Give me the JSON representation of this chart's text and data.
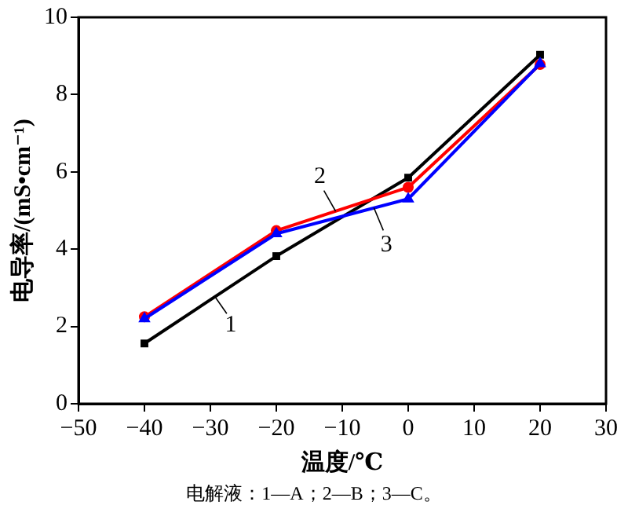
{
  "chart_data": {
    "type": "line",
    "xlabel": "温度/℃",
    "ylabel": "电导率/(mS•cm⁻¹)",
    "x": [
      -40,
      -20,
      0,
      20
    ],
    "series": [
      {
        "color": "#000000",
        "marker": "square",
        "values": [
          1.56,
          3.82,
          5.85,
          9.03
        ]
      },
      {
        "color": "#ff0000",
        "marker": "circle",
        "values": [
          2.25,
          4.48,
          5.6,
          8.78
        ]
      },
      {
        "color": "#0000ff",
        "marker": "triangle",
        "values": [
          2.2,
          4.4,
          5.3,
          8.8
        ]
      }
    ],
    "xlim": [
      -50,
      30
    ],
    "xticks": [
      -50,
      -40,
      -30,
      -20,
      -10,
      0,
      10,
      20,
      30
    ],
    "ylim": [
      0,
      10
    ],
    "yticks": [
      0,
      2,
      4,
      6,
      8,
      10
    ],
    "grid": false,
    "legend": false,
    "line_style": "solid",
    "annotations": [
      {
        "text": "1",
        "x": -29.3,
        "y": 2.77
      },
      {
        "text": "2",
        "x": -11,
        "y": 4.98
      },
      {
        "text": "3",
        "x": -5.2,
        "y": 5.07
      },
      "电解液：1—A；2—B；3—C。"
    ]
  }
}
